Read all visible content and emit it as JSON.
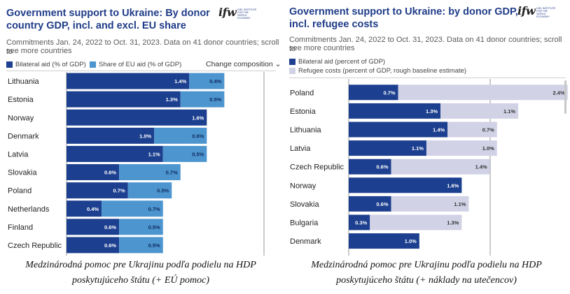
{
  "colors": {
    "bilateral": "#1c3f8f",
    "eu_share": "#4d95cf",
    "refugee": "#d1d2e6",
    "title": "#1f3c88",
    "grid": "#9a9a9a"
  },
  "left": {
    "title_line1": "Government support to Ukraine: By donor",
    "title_line2": "country GDP, incl. and excl. EU share",
    "subtitle_line1": "Commitments Jan. 24, 2022 to Oct. 31, 2023. Data on 41 donor countries; scroll to",
    "subtitle_line2": "see more countries",
    "logo_text": "ifw",
    "logo_small": "KIEL INSTITUTE FOR THE WORLD ECONOMY",
    "dropdown_label": "Change composition",
    "dropdown_icon": "chevron-down-icon",
    "caption_line1": "Medzinárodná pomoc pre Ukrajinu podľa podielu na HDP",
    "caption_line2": "poskytujúceho štátu (+ EÚ pomoc)"
  },
  "right": {
    "title_line1": "Government support to Ukraine: by donor GDP,",
    "title_line2": "incl. refugee costs",
    "subtitle_line1": "Commitments Jan. 24, 2022 to Oct. 31, 2023. Data on 41 donor countries; scroll to",
    "subtitle_line2": "see more countries",
    "logo_text": "ifw",
    "logo_small": "KIEL INSTITUTE FOR THE WORLD ECONOMY",
    "caption_line1": "Medzinárodná pomoc pre Ukrajinu podľa podielu na HDP",
    "caption_line2": "poskytujúceho štátu (+ náklady na utečencov)"
  },
  "chart_data": [
    {
      "type": "bar",
      "orientation": "horizontal",
      "stacked": true,
      "title": "Government support to Ukraine: By donor country GDP, incl. and excl. EU share",
      "categories": [
        "Lithuania",
        "Estonia",
        "Norway",
        "Denmark",
        "Latvia",
        "Slovakia",
        "Poland",
        "Netherlands",
        "Finland",
        "Czech Republic"
      ],
      "series": [
        {
          "name": "Bilateral aid (% of GDP)",
          "values": [
            1.4,
            1.3,
            1.6,
            1.0,
            1.1,
            0.6,
            0.7,
            0.4,
            0.6,
            0.6
          ],
          "labels": [
            "1.4%",
            "1.3%",
            "1.6%",
            "1.0%",
            "1.1%",
            "0.6%",
            "0.7%",
            "0.4%",
            "0.6%",
            "0.6%"
          ]
        },
        {
          "name": "Share of EU aid (% of GDP)",
          "values": [
            0.4,
            0.5,
            null,
            0.6,
            0.5,
            0.7,
            0.5,
            0.7,
            0.5,
            0.5
          ],
          "labels": [
            "0.4%",
            "0.5%",
            "",
            "0.6%",
            "0.5%",
            "0.7%",
            "0.5%",
            "0.7%",
            "0.5%",
            "0.5%"
          ]
        }
      ],
      "xlim": [
        0,
        2.5
      ],
      "grid": true,
      "legend_position": "top-left"
    },
    {
      "type": "bar",
      "orientation": "horizontal",
      "stacked": true,
      "title": "Government support to Ukraine: by donor GDP, incl. refugee costs",
      "categories": [
        "Poland",
        "Estonia",
        "Lithuania",
        "Latvia",
        "Czech Republic",
        "Norway",
        "Slovakia",
        "Bulgaria",
        "Denmark"
      ],
      "series": [
        {
          "name": "Bilateral aid (percent of GDP)",
          "values": [
            0.7,
            1.3,
            1.4,
            1.1,
            0.6,
            1.6,
            0.6,
            0.3,
            1.0
          ],
          "labels": [
            "0.7%",
            "1.3%",
            "1.4%",
            "1.1%",
            "0.6%",
            "1.6%",
            "0.6%",
            "0.3%",
            "1.0%"
          ]
        },
        {
          "name": "Refugee costs (percent of GDP, rough baseline estimate)",
          "values": [
            2.4,
            1.1,
            0.7,
            1.0,
            1.4,
            null,
            1.1,
            1.3,
            null
          ],
          "labels": [
            "2.4%",
            "1.1%",
            "0.7%",
            "1.0%",
            "1.4%",
            "",
            "1.1%",
            "1.3%",
            ""
          ]
        }
      ],
      "xlim": [
        0,
        3.5
      ],
      "grid": true,
      "legend_position": "top-left"
    }
  ]
}
